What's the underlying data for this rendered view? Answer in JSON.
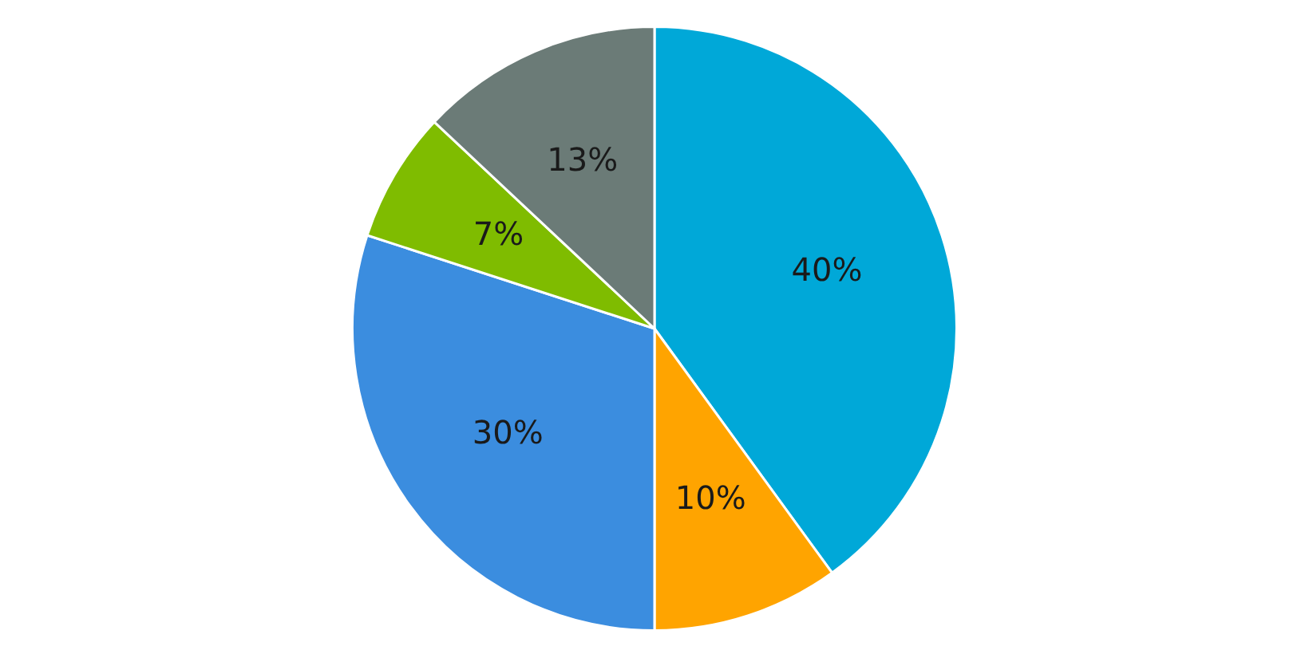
{
  "chart_data": {
    "type": "pie",
    "categories": [
      null,
      null,
      null,
      null,
      null
    ],
    "values": [
      40,
      10,
      30,
      7,
      13
    ],
    "colors": [
      "#00a8d8",
      "#ffa400",
      "#3b8ddf",
      "#7fbc00",
      "#6b7b77"
    ],
    "value_labels": [
      "40%",
      "10%",
      "30%",
      "7%",
      "13%"
    ],
    "legend": false
  }
}
